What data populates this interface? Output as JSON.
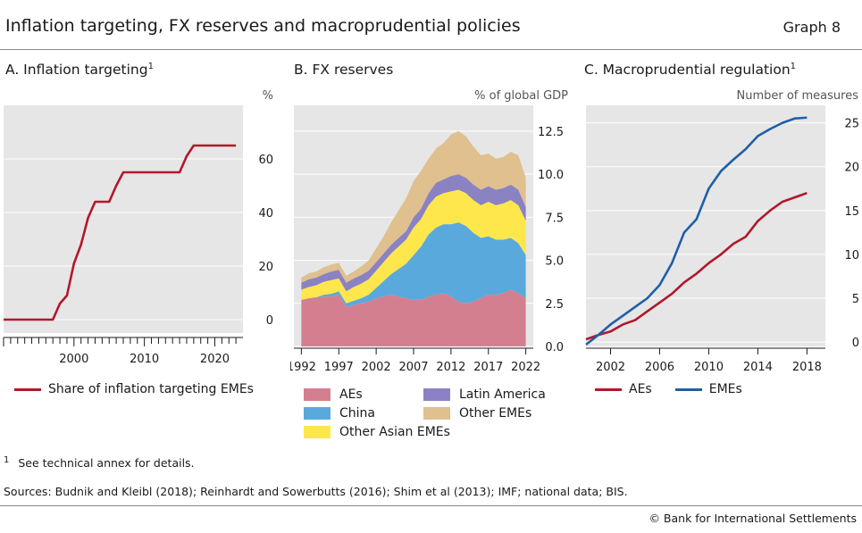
{
  "header": {
    "title": "Inflation targeting, FX reserves and macroprudential policies",
    "graph_number": "Graph 8"
  },
  "panels": {
    "a": {
      "title": "A. Inflation targeting",
      "note_marker": "1",
      "unit": "%",
      "legend": "Share of inflation targeting EMEs"
    },
    "b": {
      "title": "B. FX reserves",
      "unit": "% of global GDP",
      "legend": [
        "AEs",
        "Latin America",
        "China",
        "Other EMEs",
        "Other Asian EMEs"
      ]
    },
    "c": {
      "title": "C. Macroprudential regulation",
      "note_marker": "1",
      "unit": "Number of measures",
      "legend": [
        "AEs",
        "EMEs"
      ]
    }
  },
  "footer": {
    "footnote_marker": "1",
    "footnote": "See technical annex for details.",
    "sources": "Sources: Budnik and Kleibl (2018); Reinhardt and Sowerbutts (2016); Shim et al (2013); IMF; national data; BIS.",
    "copyright": "© Bank for International Settlements"
  },
  "colors": {
    "red": "#b2182b",
    "blue": "#1f5fa8",
    "aes_area": "#d47f8f",
    "china": "#5aa9dc",
    "other_asian": "#fde74c",
    "latam": "#8b82c4",
    "other_emes": "#dfc08e",
    "plot_bg": "#e6e6e6"
  },
  "chart_data": [
    {
      "type": "line",
      "title": "A. Inflation targeting",
      "ylabel": "%",
      "xlim": [
        1990,
        2024
      ],
      "ylim": [
        -5,
        80
      ],
      "yticks": [
        0,
        20,
        40,
        60
      ],
      "xticks": [
        2000,
        2010,
        2020
      ],
      "series": [
        {
          "name": "Share of inflation targeting EMEs",
          "x": [
            1990,
            1997,
            1998,
            1999,
            2000,
            2001,
            2002,
            2003,
            2004,
            2005,
            2006,
            2007,
            2008,
            2009,
            2010,
            2011,
            2012,
            2013,
            2014,
            2015,
            2016,
            2017,
            2018,
            2019,
            2020,
            2021,
            2022,
            2023
          ],
          "values": [
            0,
            0,
            6,
            9,
            21,
            28,
            38,
            44,
            44,
            44,
            50,
            55,
            55,
            55,
            55,
            55,
            55,
            55,
            55,
            55,
            61,
            65,
            65,
            65,
            65,
            65,
            65,
            65
          ]
        }
      ]
    },
    {
      "type": "area",
      "title": "B. FX reserves",
      "ylabel": "% of global GDP",
      "stacked": true,
      "xlim": [
        1991,
        2023
      ],
      "ylim": [
        0,
        14
      ],
      "yticks": [
        0.0,
        2.5,
        5.0,
        7.5,
        10.0,
        12.5
      ],
      "xticks": [
        1992,
        1997,
        2002,
        2007,
        2012,
        2017,
        2022
      ],
      "x": [
        1992,
        1993,
        1994,
        1995,
        1996,
        1997,
        1998,
        1999,
        2000,
        2001,
        2002,
        2003,
        2004,
        2005,
        2006,
        2007,
        2008,
        2009,
        2010,
        2011,
        2012,
        2013,
        2014,
        2015,
        2016,
        2017,
        2018,
        2019,
        2020,
        2021,
        2022
      ],
      "series": [
        {
          "name": "AEs",
          "values": [
            2.7,
            2.8,
            2.8,
            2.9,
            2.9,
            3.0,
            2.3,
            2.4,
            2.5,
            2.6,
            2.8,
            2.9,
            3.0,
            2.9,
            2.8,
            2.7,
            2.7,
            2.9,
            3.0,
            3.1,
            2.9,
            2.6,
            2.5,
            2.6,
            2.8,
            3.0,
            3.0,
            3.1,
            3.3,
            3.1,
            2.8
          ]
        },
        {
          "name": "China",
          "values": [
            0.0,
            0.0,
            0.05,
            0.1,
            0.15,
            0.2,
            0.2,
            0.25,
            0.3,
            0.4,
            0.6,
            0.9,
            1.2,
            1.6,
            2.0,
            2.6,
            3.1,
            3.6,
            3.9,
            4.0,
            4.2,
            4.6,
            4.5,
            4.0,
            3.5,
            3.4,
            3.2,
            3.1,
            3.0,
            2.9,
            2.5
          ]
        },
        {
          "name": "Other Asian EMEs",
          "values": [
            0.6,
            0.65,
            0.7,
            0.75,
            0.8,
            0.75,
            0.7,
            0.8,
            0.85,
            0.9,
            1.0,
            1.1,
            1.2,
            1.3,
            1.4,
            1.6,
            1.6,
            1.7,
            1.8,
            1.8,
            1.9,
            1.9,
            1.9,
            1.9,
            1.9,
            2.0,
            2.0,
            2.1,
            2.2,
            2.2,
            2.0
          ]
        },
        {
          "name": "Latin America",
          "values": [
            0.4,
            0.45,
            0.45,
            0.45,
            0.5,
            0.5,
            0.5,
            0.5,
            0.5,
            0.5,
            0.5,
            0.5,
            0.5,
            0.5,
            0.5,
            0.6,
            0.6,
            0.7,
            0.8,
            0.8,
            0.9,
            0.9,
            0.9,
            0.9,
            0.9,
            0.9,
            0.9,
            0.9,
            0.9,
            0.9,
            0.8
          ]
        },
        {
          "name": "Other EMEs",
          "values": [
            0.3,
            0.35,
            0.35,
            0.4,
            0.4,
            0.4,
            0.4,
            0.4,
            0.5,
            0.6,
            0.8,
            1.0,
            1.3,
            1.6,
            1.9,
            2.1,
            2.2,
            2.0,
            2.0,
            2.1,
            2.4,
            2.5,
            2.4,
            2.2,
            2.0,
            1.9,
            1.8,
            1.8,
            1.9,
            2.0,
            1.7
          ]
        }
      ]
    },
    {
      "type": "line",
      "title": "C. Macroprudential regulation",
      "ylabel": "Number of measures",
      "xlim": [
        2000,
        2019.5
      ],
      "ylim": [
        -0.5,
        27
      ],
      "yticks": [
        0,
        5,
        10,
        15,
        20,
        25
      ],
      "xticks": [
        2002,
        2006,
        2010,
        2014,
        2018
      ],
      "series": [
        {
          "name": "AEs",
          "x": [
            2000,
            2001,
            2002,
            2003,
            2004,
            2005,
            2006,
            2007,
            2008,
            2009,
            2010,
            2011,
            2012,
            2013,
            2014,
            2015,
            2016,
            2017,
            2018
          ],
          "values": [
            0.3,
            0.8,
            1.2,
            2.0,
            2.5,
            3.5,
            4.5,
            5.5,
            6.8,
            7.8,
            9.0,
            10.0,
            11.2,
            12.0,
            13.8,
            15.0,
            16.0,
            16.5,
            17.0
          ]
        },
        {
          "name": "EMEs",
          "x": [
            2000,
            2001,
            2002,
            2003,
            2004,
            2005,
            2006,
            2007,
            2008,
            2009,
            2010,
            2011,
            2012,
            2013,
            2014,
            2015,
            2016,
            2017,
            2018
          ],
          "values": [
            -0.3,
            0.8,
            2.0,
            3.0,
            4.0,
            5.0,
            6.5,
            9.0,
            12.5,
            14.0,
            17.5,
            19.5,
            20.8,
            22.0,
            23.5,
            24.3,
            25.0,
            25.5,
            25.6
          ]
        }
      ]
    }
  ]
}
